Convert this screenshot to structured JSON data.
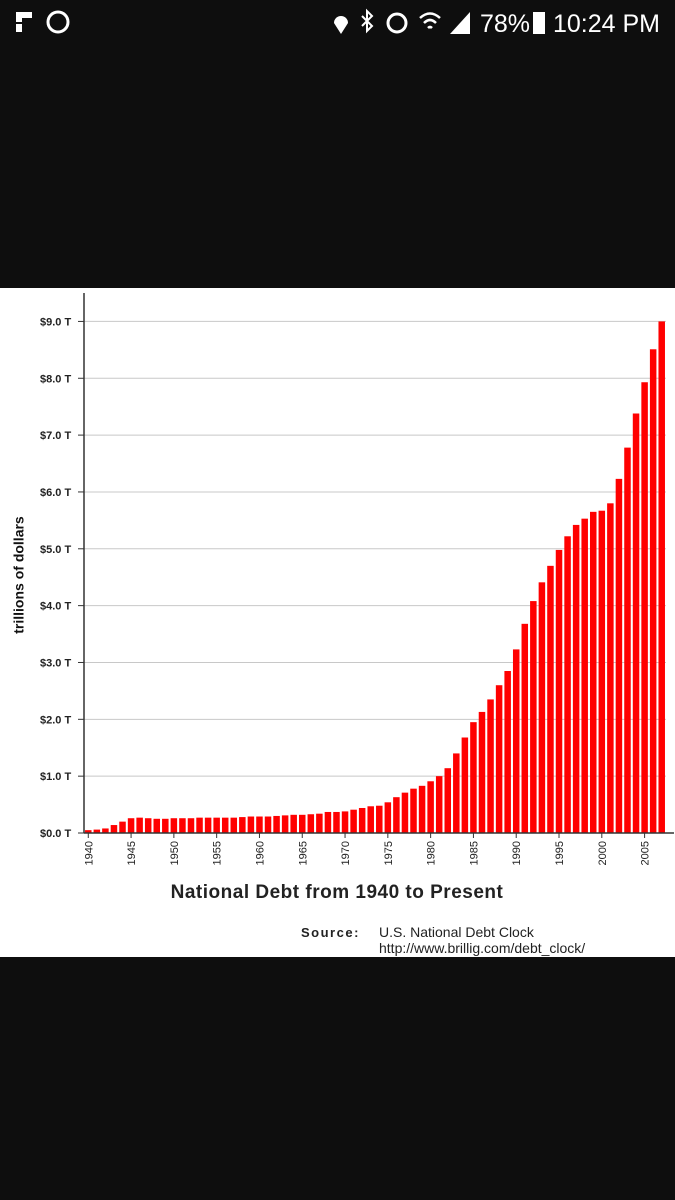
{
  "status_bar": {
    "battery": "78%",
    "time": "10:24 PM"
  },
  "chart_data": {
    "type": "bar",
    "title": "National Debt from 1940 to Present",
    "ylabel": "trillions of dollars",
    "source_label": "Source:",
    "source_name": "U.S. National Debt Clock",
    "source_url": "http://www.brillig.com/debt_clock/",
    "color": "#ff0000",
    "grid": true,
    "x": [
      1940,
      1941,
      1942,
      1943,
      1944,
      1945,
      1946,
      1947,
      1948,
      1949,
      1950,
      1951,
      1952,
      1953,
      1954,
      1955,
      1956,
      1957,
      1958,
      1959,
      1960,
      1961,
      1962,
      1963,
      1964,
      1965,
      1966,
      1967,
      1968,
      1969,
      1970,
      1971,
      1972,
      1973,
      1974,
      1975,
      1976,
      1977,
      1978,
      1979,
      1980,
      1981,
      1982,
      1983,
      1984,
      1985,
      1986,
      1987,
      1988,
      1989,
      1990,
      1991,
      1992,
      1993,
      1994,
      1995,
      1996,
      1997,
      1998,
      1999,
      2000,
      2001,
      2002,
      2003,
      2004,
      2005,
      2006,
      2007
    ],
    "values": [
      0.05,
      0.06,
      0.08,
      0.14,
      0.2,
      0.26,
      0.27,
      0.26,
      0.25,
      0.25,
      0.26,
      0.26,
      0.26,
      0.27,
      0.27,
      0.27,
      0.27,
      0.27,
      0.28,
      0.29,
      0.29,
      0.29,
      0.3,
      0.31,
      0.32,
      0.32,
      0.33,
      0.34,
      0.37,
      0.37,
      0.38,
      0.41,
      0.44,
      0.47,
      0.48,
      0.54,
      0.63,
      0.71,
      0.78,
      0.83,
      0.91,
      1.0,
      1.14,
      1.4,
      1.68,
      1.95,
      2.13,
      2.35,
      2.6,
      2.85,
      3.23,
      3.68,
      4.08,
      4.41,
      4.7,
      4.98,
      5.22,
      5.42,
      5.53,
      5.65,
      5.67,
      5.8,
      6.23,
      6.78,
      7.38,
      7.93,
      8.51,
      9.0
    ],
    "xlim": [
      1939.5,
      2007.5
    ],
    "xticks": [
      1940,
      1945,
      1950,
      1955,
      1960,
      1965,
      1970,
      1975,
      1980,
      1985,
      1990,
      1995,
      2000,
      2005
    ],
    "ylim": [
      0,
      9.5
    ],
    "yticks": [
      {
        "value": 0,
        "label": "$0.0 T"
      },
      {
        "value": 1,
        "label": "$1.0 T"
      },
      {
        "value": 2,
        "label": "$2.0 T"
      },
      {
        "value": 3,
        "label": "$3.0 T"
      },
      {
        "value": 4,
        "label": "$4.0 T"
      },
      {
        "value": 5,
        "label": "$5.0 T"
      },
      {
        "value": 6,
        "label": "$6.0 T"
      },
      {
        "value": 7,
        "label": "$7.0 T"
      },
      {
        "value": 8,
        "label": "$8.0 T"
      },
      {
        "value": 9,
        "label": "$9.0 T"
      }
    ]
  }
}
